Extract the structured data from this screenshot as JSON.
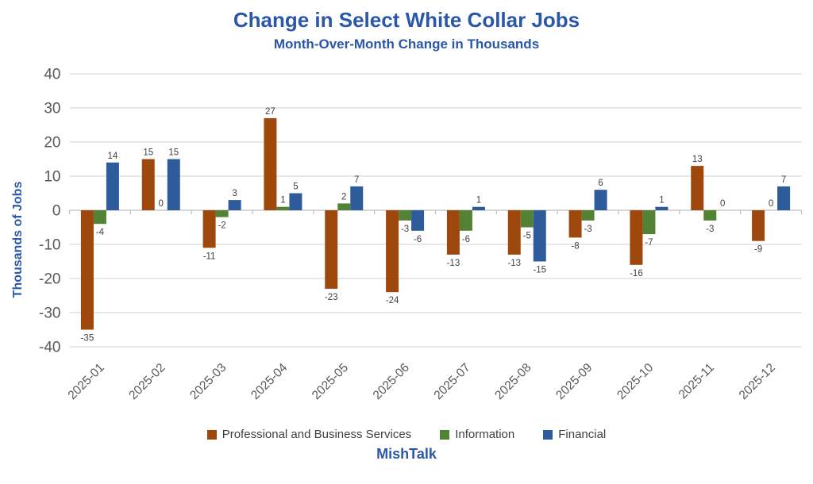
{
  "footer": {
    "brand": "MishTalk"
  },
  "colors": {
    "title_blue": "#2B57A8",
    "axis_text": "#595959",
    "value_label": "#404040",
    "gridline": "#D9D9D9",
    "axis_line": "#BFBFBF",
    "legend_text": "#404040"
  },
  "chart_data": {
    "type": "bar",
    "title": "Change in Select White Collar Jobs",
    "subtitle": "Month-Over-Month Change in Thousands",
    "ylabel": "Thousands of Jobs",
    "xlabel": "",
    "ylim": [
      -40,
      40
    ],
    "ytick_step": 10,
    "grid": true,
    "legend_position": "bottom",
    "categories": [
      "2025-01",
      "2025-02",
      "2025-03",
      "2025-04",
      "2025-05",
      "2025-06",
      "2025-07",
      "2025-08",
      "2025-09",
      "2025-10",
      "2025-11",
      "2025-12"
    ],
    "series": [
      {
        "name": "Professional and Business Services",
        "color": "#9E480E",
        "values": [
          -35,
          15,
          -11,
          27,
          -23,
          -24,
          -13,
          -13,
          -8,
          -16,
          13,
          -9
        ]
      },
      {
        "name": "Information",
        "color": "#548235",
        "values": [
          -4,
          0,
          -2,
          1,
          2,
          -3,
          -6,
          -5,
          -3,
          -7,
          -3,
          0
        ]
      },
      {
        "name": "Financial",
        "color": "#2E5B9B",
        "values": [
          14,
          15,
          3,
          5,
          7,
          -6,
          1,
          -15,
          6,
          1,
          0,
          7
        ]
      }
    ]
  }
}
